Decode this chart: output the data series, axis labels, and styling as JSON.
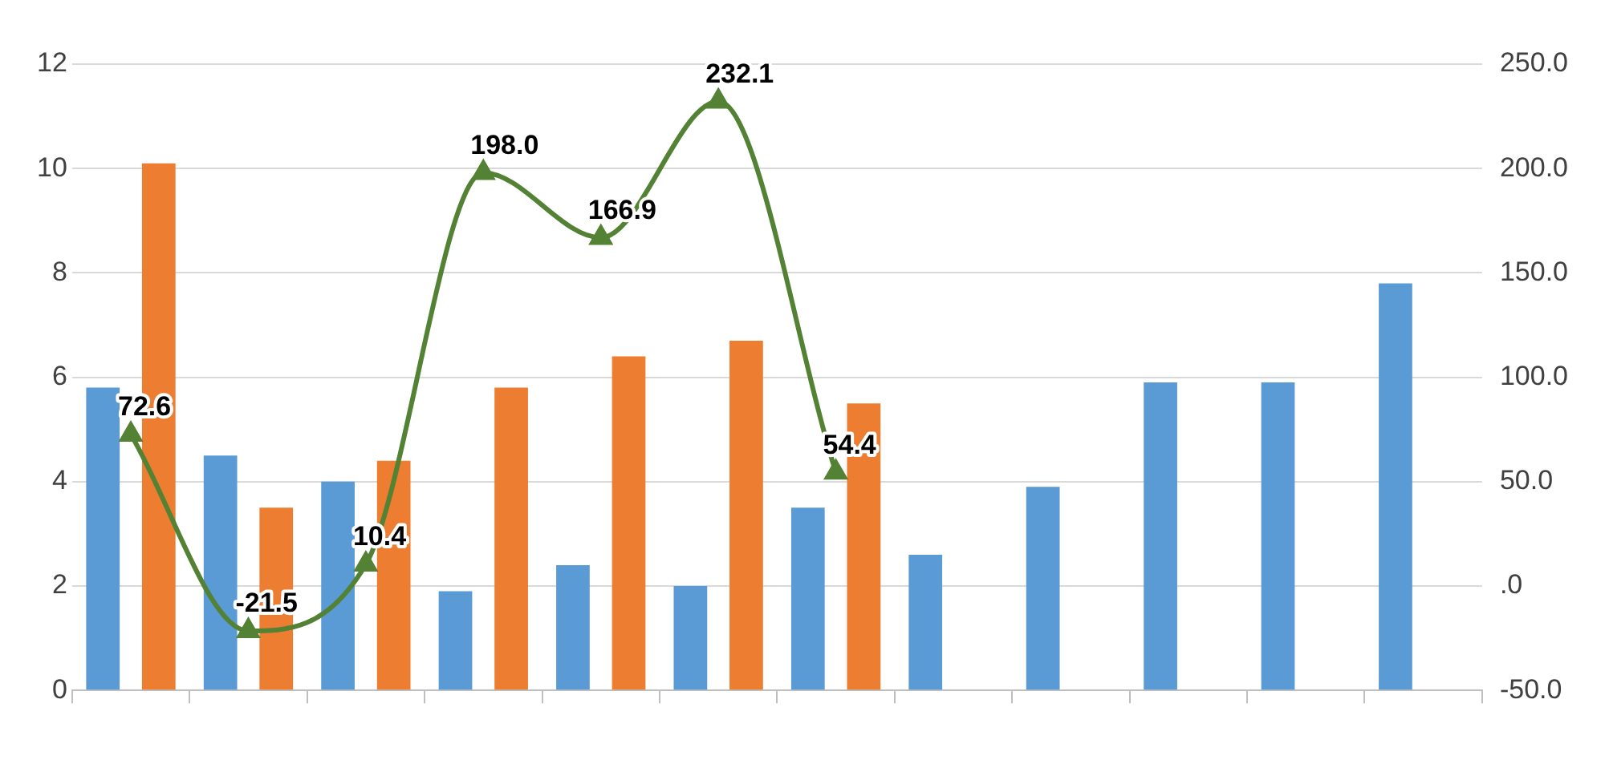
{
  "chart_data": {
    "type": "bar",
    "categories": [
      null,
      null,
      null,
      null,
      null,
      null,
      null,
      null,
      null,
      null,
      null,
      null
    ],
    "series": [
      {
        "color": "#5b9bd5",
        "values": [
          5.8,
          4.5,
          4.0,
          1.9,
          2.4,
          2.0,
          3.5,
          2.6,
          3.9,
          5.9,
          5.9,
          7.8
        ]
      },
      {
        "color": "#ed7d31",
        "values": [
          10.1,
          3.5,
          4.4,
          5.8,
          6.4,
          6.7,
          5.5,
          null,
          null,
          null,
          null,
          null
        ]
      },
      {
        "type": "line",
        "axis": "y2",
        "color": "#548235",
        "marker": "triangle",
        "values": [
          72.6,
          -21.5,
          10.4,
          198.0,
          166.9,
          232.1,
          54.4,
          null,
          null,
          null,
          null,
          null
        ],
        "value_labels": [
          "72.6",
          "-21.5",
          "10.4",
          "198.0",
          "166.9",
          "232.1",
          "54.4",
          null,
          null,
          null,
          null,
          null
        ]
      }
    ],
    "ylim": [
      0,
      12
    ],
    "yticks": [
      0,
      2,
      4,
      6,
      8,
      10,
      12
    ],
    "y2lim": [
      -50,
      250
    ],
    "y2ticks": [
      {
        "value": -50,
        "label": "-50.0"
      },
      {
        "value": 0,
        "label": ".0"
      },
      {
        "value": 50,
        "label": "50.0"
      },
      {
        "value": 100,
        "label": "100.0"
      },
      {
        "value": 150,
        "label": "150.0"
      },
      {
        "value": 200,
        "label": "200.0"
      },
      {
        "value": 250,
        "label": "250.0"
      }
    ],
    "grid": "y",
    "legend": false
  }
}
